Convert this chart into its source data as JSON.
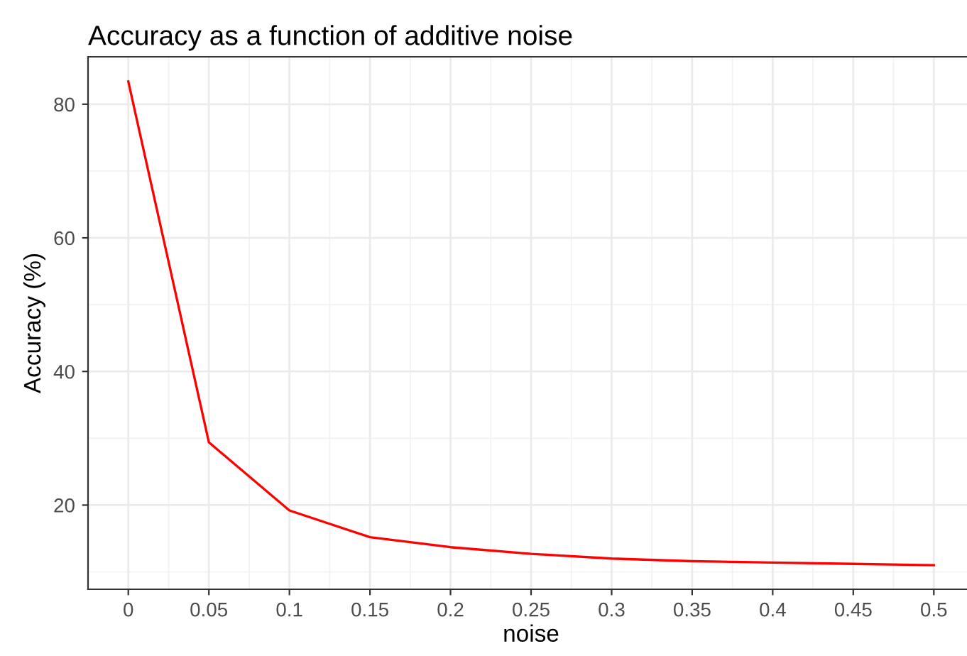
{
  "chart_data": {
    "type": "line",
    "title": "Accuracy as a function of additive noise",
    "xlabel": "noise",
    "ylabel": "Accuracy (%)",
    "x": [
      0,
      0.05,
      0.1,
      0.15,
      0.2,
      0.25,
      0.3,
      0.35,
      0.4,
      0.45,
      0.5
    ],
    "series": [
      {
        "color": "#ff0000",
        "values": [
          83.4,
          29.4,
          19.2,
          15.2,
          13.7,
          12.7,
          12.0,
          11.6,
          11.4,
          11.2,
          11.0
        ]
      }
    ],
    "xlim": [
      -0.025,
      0.525
    ],
    "ylim": [
      7.4,
      87.1
    ],
    "xticks": [
      0,
      0.05,
      0.1,
      0.15,
      0.2,
      0.25,
      0.3,
      0.35,
      0.4,
      0.45,
      0.5
    ],
    "yticks": [
      20,
      40,
      60,
      80
    ],
    "grid": true,
    "legend": false,
    "marker": "none",
    "line_style": "solid"
  }
}
